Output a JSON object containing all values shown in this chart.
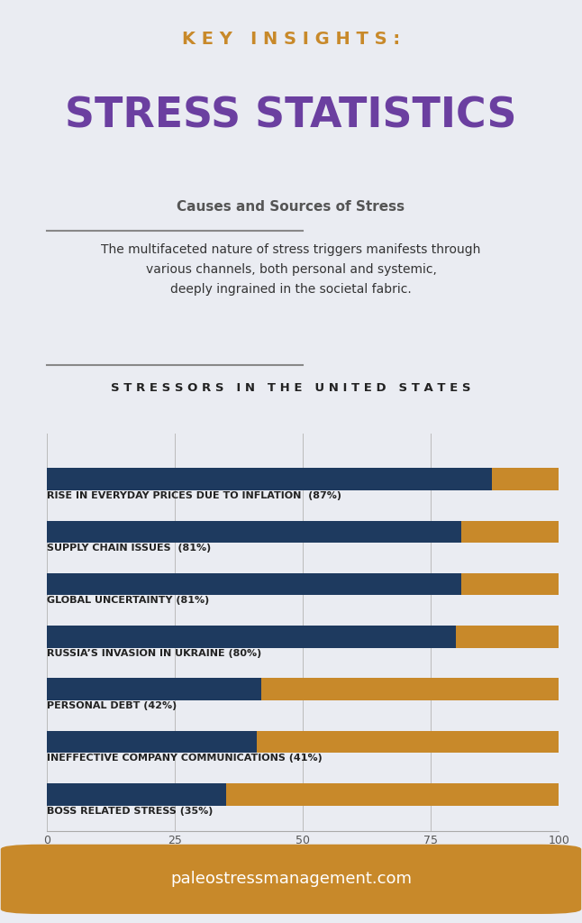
{
  "title_line1": "K E Y   I N S I G H T S :",
  "title_line2": "STRESS STATISTICS",
  "subtitle": "Causes and Sources of Stress",
  "description": "The multifaceted nature of stress triggers manifests through\nvarious channels, both personal and systemic,\ndeeply ingrained in the societal fabric.",
  "section_title": "S T R E S S O R S   I N   T H E   U N I T E D   S T A T E S",
  "categories": [
    "RISE IN EVERYDAY PRICES DUE TO INFLATION  (87%)",
    "SUPPLY CHAIN ISSUES  (81%)",
    "GLOBAL UNCERTAINTY (81%)",
    "RUSSIA’S INVASION IN UKRAINE (80%)",
    "PERSONAL DEBT (42%)",
    "INEFFECTIVE COMPANY COMMUNICATIONS (41%)",
    "BOSS RELATED STRESS (35%)"
  ],
  "values": [
    87,
    81,
    81,
    80,
    42,
    41,
    35
  ],
  "bar_color_dark": "#1e3a5f",
  "bar_color_light": "#c8892a",
  "background_color": "#eaecf2",
  "title1_color": "#c8892a",
  "title2_color": "#6b3fa0",
  "subtitle_color": "#555555",
  "description_color": "#333333",
  "section_title_color": "#222222",
  "label_color": "#222222",
  "footer_text": "paleostressmanagement.com",
  "footer_bg": "#c8892a",
  "footer_text_color": "#ffffff",
  "xlim": [
    0,
    100
  ],
  "xticks": [
    0,
    25,
    50,
    75,
    100
  ]
}
